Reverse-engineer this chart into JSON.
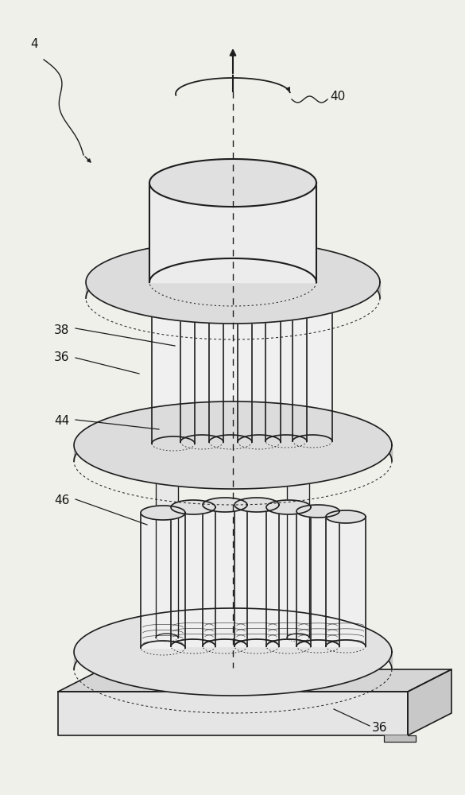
{
  "bg_color": "#f0f0eb",
  "line_color": "#1e1e1e",
  "fill_light": "#f0f0f0",
  "fill_mid": "#d8d8d8",
  "fill_dark": "#b8b8b8",
  "fill_white": "#fafafa",
  "figsize": [
    5.85,
    10.0
  ],
  "dpi": 100,
  "label_fontsize": 11,
  "label_color": "#111111"
}
